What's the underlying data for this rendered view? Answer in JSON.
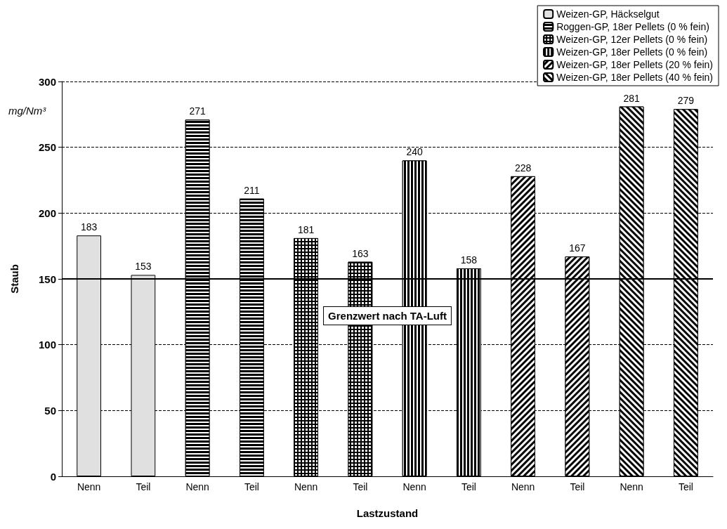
{
  "chart_data": {
    "type": "bar",
    "xlabel": "Lastzustand",
    "ylabel": "Staub",
    "annotations": [
      "mg/Nm³"
    ],
    "categories": [
      "Nenn",
      "Teil",
      "Nenn",
      "Teil",
      "Nenn",
      "Teil",
      "Nenn",
      "Teil",
      "Nenn",
      "Teil",
      "Nenn",
      "Teil"
    ],
    "series": [
      {
        "name": "Weizen-GP, Häckselgut",
        "color": "#e0e0e0",
        "values": [
          183,
          153,
          null,
          null,
          null,
          null,
          null,
          null,
          null,
          null,
          null,
          null
        ]
      },
      {
        "name": "Roggen-GP, 18er Pellets (0 % fein)",
        "color": "#000000",
        "values": [
          null,
          null,
          271,
          211,
          null,
          null,
          null,
          null,
          null,
          null,
          null,
          null
        ]
      },
      {
        "name": "Weizen-GP, 12er Pellets (0 % fein)",
        "color": "#000000",
        "values": [
          null,
          null,
          null,
          null,
          181,
          163,
          null,
          null,
          null,
          null,
          null,
          null
        ]
      },
      {
        "name": "Weizen-GP, 18er Pellets (0 % fein)",
        "color": "#000000",
        "values": [
          null,
          null,
          null,
          null,
          null,
          null,
          240,
          158,
          null,
          null,
          null,
          null
        ]
      },
      {
        "name": "Weizen-GP, 18er Pellets (20 % fein)",
        "color": "#000000",
        "values": [
          null,
          null,
          null,
          null,
          null,
          null,
          null,
          null,
          228,
          167,
          null,
          null
        ]
      },
      {
        "name": "Weizen-GP, 18er Pellets (40 % fein)",
        "color": "#000000",
        "values": [
          null,
          null,
          null,
          null,
          null,
          null,
          null,
          null,
          null,
          null,
          281,
          279
        ]
      }
    ],
    "ylim": [
      0,
      300
    ],
    "yticks": [
      0,
      50,
      100,
      150,
      200,
      250,
      300
    ],
    "grid": "y",
    "legend": "top right",
    "data_labels": true,
    "ref_lines": [
      {
        "axis": "y",
        "value": 150,
        "label": "Grenzwert nach TA-Luft",
        "color": "#000000",
        "line_style": "solid"
      }
    ]
  }
}
